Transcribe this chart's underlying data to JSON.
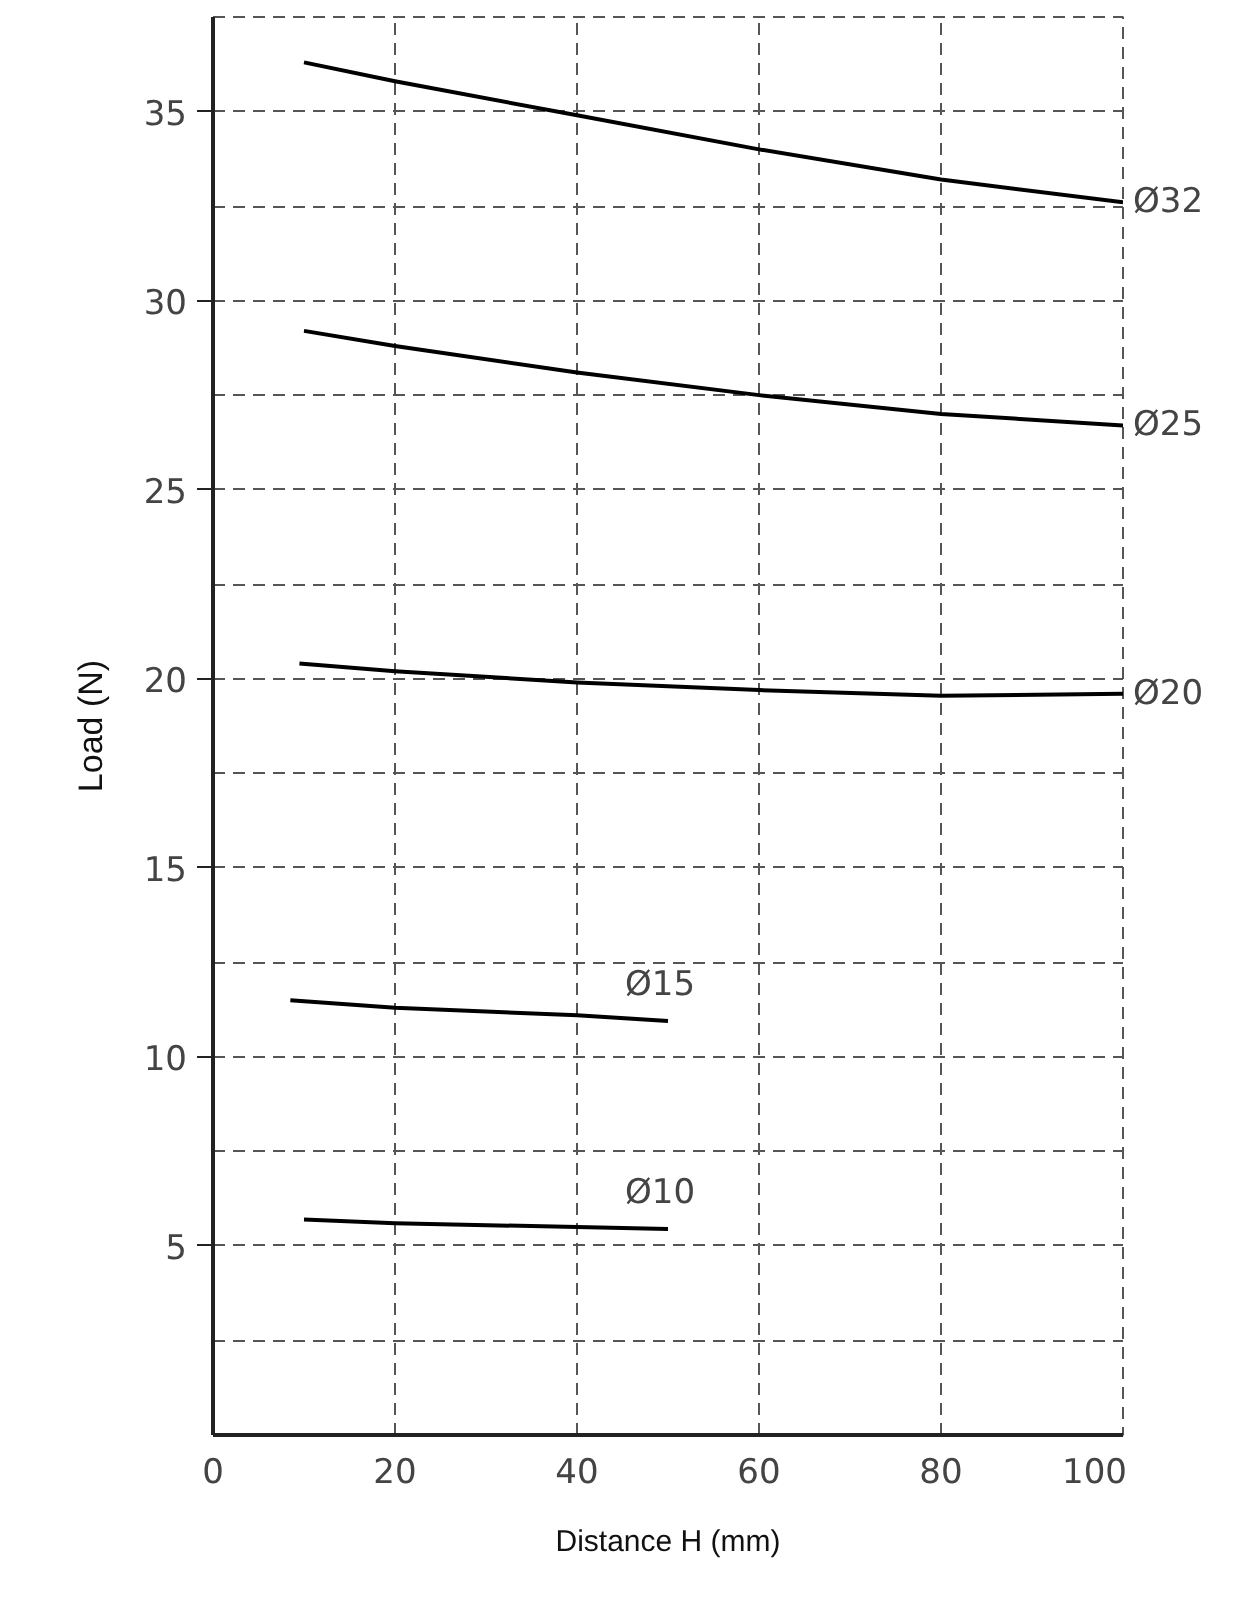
{
  "chart_data": {
    "type": "line",
    "xlabel": "Distance H (mm)",
    "ylabel": "Load (N)",
    "xlim": [
      0,
      100
    ],
    "ylim": [
      0,
      37.5
    ],
    "xticks": [
      0,
      20,
      40,
      60,
      80,
      100
    ],
    "yticks": [
      {
        "value": 2.5,
        "label": null
      },
      5,
      {
        "value": 7.5,
        "label": null
      },
      10,
      {
        "value": 12.5,
        "label": null
      },
      15,
      {
        "value": 17.5,
        "label": null
      },
      20,
      {
        "value": 22.5,
        "label": null
      },
      25,
      {
        "value": 27.5,
        "label": null
      },
      30,
      {
        "value": 32.5,
        "label": null
      },
      35,
      {
        "value": 37.5,
        "label": null
      }
    ],
    "grid": true,
    "marker": "none",
    "line_style": "solid",
    "series": [
      {
        "name": "Ø32",
        "color": "#000000",
        "x": [
          10,
          20,
          40,
          60,
          80,
          100
        ],
        "values": [
          36.3,
          35.8,
          34.9,
          34.0,
          33.2,
          32.6
        ]
      },
      {
        "name": "Ø25",
        "color": "#000000",
        "x": [
          10,
          20,
          40,
          60,
          80,
          100
        ],
        "values": [
          29.2,
          28.8,
          28.1,
          27.5,
          27.0,
          26.7
        ]
      },
      {
        "name": "Ø20",
        "color": "#000000",
        "x": [
          9.5,
          20,
          40,
          60,
          80,
          100
        ],
        "values": [
          20.4,
          20.2,
          19.9,
          19.7,
          19.55,
          19.6
        ]
      },
      {
        "name": "Ø15",
        "color": "#000000",
        "x": [
          8.5,
          20,
          40,
          50
        ],
        "values": [
          11.5,
          11.3,
          11.1,
          10.95
        ]
      },
      {
        "name": "Ø10",
        "color": "#000000",
        "x": [
          10,
          20,
          40,
          50
        ],
        "values": [
          5.7,
          5.6,
          5.5,
          5.45
        ]
      }
    ]
  }
}
